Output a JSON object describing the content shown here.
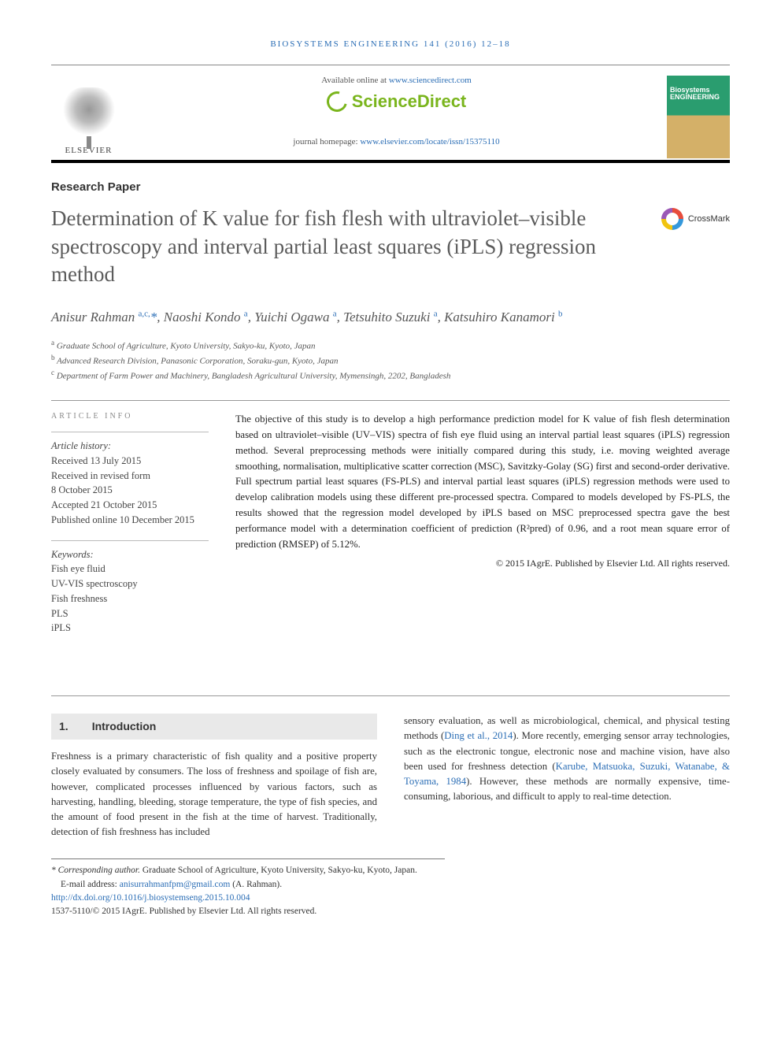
{
  "journal_ref": "BIOSYSTEMS ENGINEERING 141 (2016) 12–18",
  "header": {
    "available_text": "Available online at ",
    "available_url": "www.sciencedirect.com",
    "sciencedirect": "ScienceDirect",
    "homepage_label": "journal homepage: ",
    "homepage_url": "www.elsevier.com/locate/issn/15375110",
    "elsevier": "ELSEVIER",
    "cover_title": "Biosystems\nENGINEERING"
  },
  "paper_type": "Research Paper",
  "title": "Determination of K value for fish flesh with ultraviolet–visible spectroscopy and interval partial least squares (iPLS) regression method",
  "crossmark": "CrossMark",
  "authors_html": "Anisur Rahman <sup>a,c,</sup><span class='corr'>*</span>, Naoshi Kondo <sup>a</sup>, Yuichi Ogawa <sup>a</sup>, Tetsuhito Suzuki <sup>a</sup>, Katsuhiro Kanamori <sup>b</sup>",
  "affiliations": [
    {
      "mark": "a",
      "text": "Graduate School of Agriculture, Kyoto University, Sakyo-ku, Kyoto, Japan"
    },
    {
      "mark": "b",
      "text": "Advanced Research Division, Panasonic Corporation, Soraku-gun, Kyoto, Japan"
    },
    {
      "mark": "c",
      "text": "Department of Farm Power and Machinery, Bangladesh Agricultural University, Mymensingh, 2202, Bangladesh"
    }
  ],
  "article_info": {
    "head": "ARTICLE INFO",
    "history_label": "Article history:",
    "history": [
      "Received 13 July 2015",
      "Received in revised form",
      "8 October 2015",
      "Accepted 21 October 2015",
      "Published online 10 December 2015"
    ],
    "keywords_label": "Keywords:",
    "keywords": [
      "Fish eye fluid",
      "UV-VIS spectroscopy",
      "Fish freshness",
      "PLS",
      "iPLS"
    ]
  },
  "abstract": "The objective of this study is to develop a high performance prediction model for K value of fish flesh determination based on ultraviolet–visible (UV–VIS) spectra of fish eye fluid using an interval partial least squares (iPLS) regression method. Several preprocessing methods were initially compared during this study, i.e. moving weighted average smoothing, normalisation, multiplicative scatter correction (MSC), Savitzky-Golay (SG) first and second-order derivative. Full spectrum partial least squares (FS-PLS) and interval partial least squares (iPLS) regression methods were used to develop calibration models using these different pre-processed spectra. Compared to models developed by FS-PLS, the results showed that the regression model developed by iPLS based on MSC preprocessed spectra gave the best performance model with a determination coefficient of prediction (R²pred) of 0.96, and a root mean square error of prediction (RMSEP) of 5.12%.",
  "copyright": "© 2015 IAgrE. Published by Elsevier Ltd. All rights reserved.",
  "section1": {
    "num": "1.",
    "title": "Introduction",
    "col1": "Freshness is a primary characteristic of fish quality and a positive property closely evaluated by consumers. The loss of freshness and spoilage of fish are, however, complicated processes influenced by various factors, such as harvesting, handling, bleeding, storage temperature, the type of fish species, and the amount of food present in the fish at the time of harvest. Traditionally, detection of fish freshness has included",
    "col2_pre": "sensory evaluation, as well as microbiological, chemical, and physical testing methods (",
    "col2_ref1": "Ding et al., 2014",
    "col2_mid": "). More recently, emerging sensor array technologies, such as the electronic tongue, electronic nose and machine vision, have also been used for freshness detection (",
    "col2_ref2": "Karube, Matsuoka, Suzuki, Watanabe, & Toyama, 1984",
    "col2_post": "). However, these methods are normally expensive, time-consuming, laborious, and difficult to apply to real-time detection."
  },
  "footnotes": {
    "corr_label": "* Corresponding author.",
    "corr_text": " Graduate School of Agriculture, Kyoto University, Sakyo-ku, Kyoto, Japan.",
    "email_label": "E-mail address: ",
    "email": "anisurrahmanfpm@gmail.com",
    "email_author": " (A. Rahman).",
    "doi": "http://dx.doi.org/10.1016/j.biosystemseng.2015.10.004",
    "issn_line": "1537-5110/© 2015 IAgrE. Published by Elsevier Ltd. All rights reserved."
  }
}
